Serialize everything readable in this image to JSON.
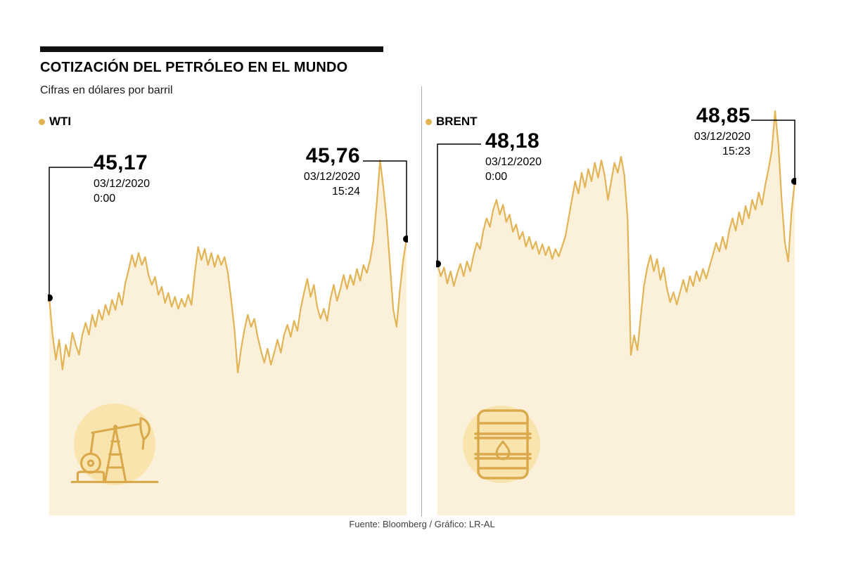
{
  "header": {
    "title": "COTIZACIÓN DEL PETRÓLEO EN EL MUNDO",
    "subtitle": "Cifras en dólares por barril"
  },
  "footer": {
    "source": "Fuente: Bloomberg / Gráfico: LR-AL"
  },
  "colors": {
    "line": "#E2B456",
    "fill": "#FBF0DA",
    "icon": "#D9A94B",
    "icon_bg": "#FAE4AE",
    "dot": "#000000",
    "connector": "#000000"
  },
  "chart_data": [
    {
      "type": "area",
      "name": "WTI",
      "title": "WTI",
      "ylabel": "dólares por barril",
      "ylim": [
        44.42,
        46.55
      ],
      "legend_position": "top-left",
      "grid": false,
      "start_label": {
        "value": "45,17",
        "date": "03/12/2020",
        "time": "0:00"
      },
      "end_label": {
        "value": "45,76",
        "date": "03/12/2020",
        "time": "15:24"
      },
      "values": [
        45.17,
        44.8,
        44.55,
        44.75,
        44.45,
        44.7,
        44.58,
        44.82,
        44.7,
        44.6,
        44.8,
        44.92,
        44.8,
        45.0,
        44.88,
        45.05,
        44.95,
        45.1,
        45.0,
        45.15,
        45.05,
        45.22,
        45.1,
        45.32,
        45.45,
        45.6,
        45.48,
        45.62,
        45.5,
        45.58,
        45.4,
        45.3,
        45.38,
        45.2,
        45.28,
        45.12,
        45.22,
        45.08,
        45.18,
        45.06,
        45.16,
        45.08,
        45.2,
        45.1,
        45.42,
        45.68,
        45.55,
        45.66,
        45.5,
        45.62,
        45.48,
        45.6,
        45.5,
        45.58,
        45.42,
        45.15,
        44.85,
        44.42,
        44.66,
        44.85,
        45.0,
        44.88,
        44.96,
        44.78,
        44.64,
        44.52,
        44.66,
        44.5,
        44.62,
        44.75,
        44.62,
        44.8,
        44.9,
        44.78,
        44.94,
        44.84,
        45.06,
        45.22,
        45.36,
        45.18,
        45.3,
        45.08,
        44.96,
        45.06,
        44.94,
        45.16,
        45.3,
        45.14,
        45.26,
        45.4,
        45.26,
        45.4,
        45.3,
        45.46,
        45.34,
        45.5,
        45.42,
        45.55,
        45.75,
        46.12,
        46.55,
        46.28,
        45.95,
        45.5,
        45.05,
        44.88,
        45.25,
        45.55,
        45.76
      ]
    },
    {
      "type": "area",
      "name": "BRENT",
      "title": "BRENT",
      "ylabel": "dólares por barril",
      "ylim": [
        47.44,
        49.42
      ],
      "legend_position": "top-left",
      "grid": false,
      "start_label": {
        "value": "48,18",
        "date": "03/12/2020",
        "time": "0:00"
      },
      "end_label": {
        "value": "48,85",
        "date": "03/12/2020",
        "time": "15:23"
      },
      "values": [
        48.18,
        48.08,
        48.15,
        48.02,
        48.12,
        48.0,
        48.1,
        48.18,
        48.08,
        48.2,
        48.12,
        48.25,
        48.35,
        48.3,
        48.45,
        48.55,
        48.48,
        48.62,
        48.7,
        48.58,
        48.66,
        48.52,
        48.58,
        48.44,
        48.5,
        48.38,
        48.44,
        48.32,
        48.4,
        48.3,
        48.36,
        48.26,
        48.34,
        48.25,
        48.32,
        48.22,
        48.3,
        48.24,
        48.32,
        48.4,
        48.55,
        48.7,
        48.85,
        48.75,
        48.92,
        48.8,
        48.95,
        48.85,
        49.0,
        48.88,
        49.02,
        48.9,
        48.7,
        48.85,
        49.0,
        48.92,
        49.05,
        48.9,
        48.55,
        47.44,
        47.6,
        47.48,
        47.75,
        48.0,
        48.15,
        48.25,
        48.12,
        48.22,
        48.05,
        48.15,
        47.98,
        47.87,
        47.95,
        47.85,
        47.95,
        48.05,
        47.95,
        48.08,
        48.0,
        48.12,
        48.04,
        48.14,
        48.06,
        48.16,
        48.25,
        48.35,
        48.28,
        48.4,
        48.3,
        48.45,
        48.55,
        48.45,
        48.6,
        48.5,
        48.65,
        48.55,
        48.7,
        48.62,
        48.76,
        48.66,
        48.82,
        48.95,
        49.1,
        49.42,
        49.15,
        48.7,
        48.35,
        48.2,
        48.6,
        48.85
      ]
    }
  ]
}
